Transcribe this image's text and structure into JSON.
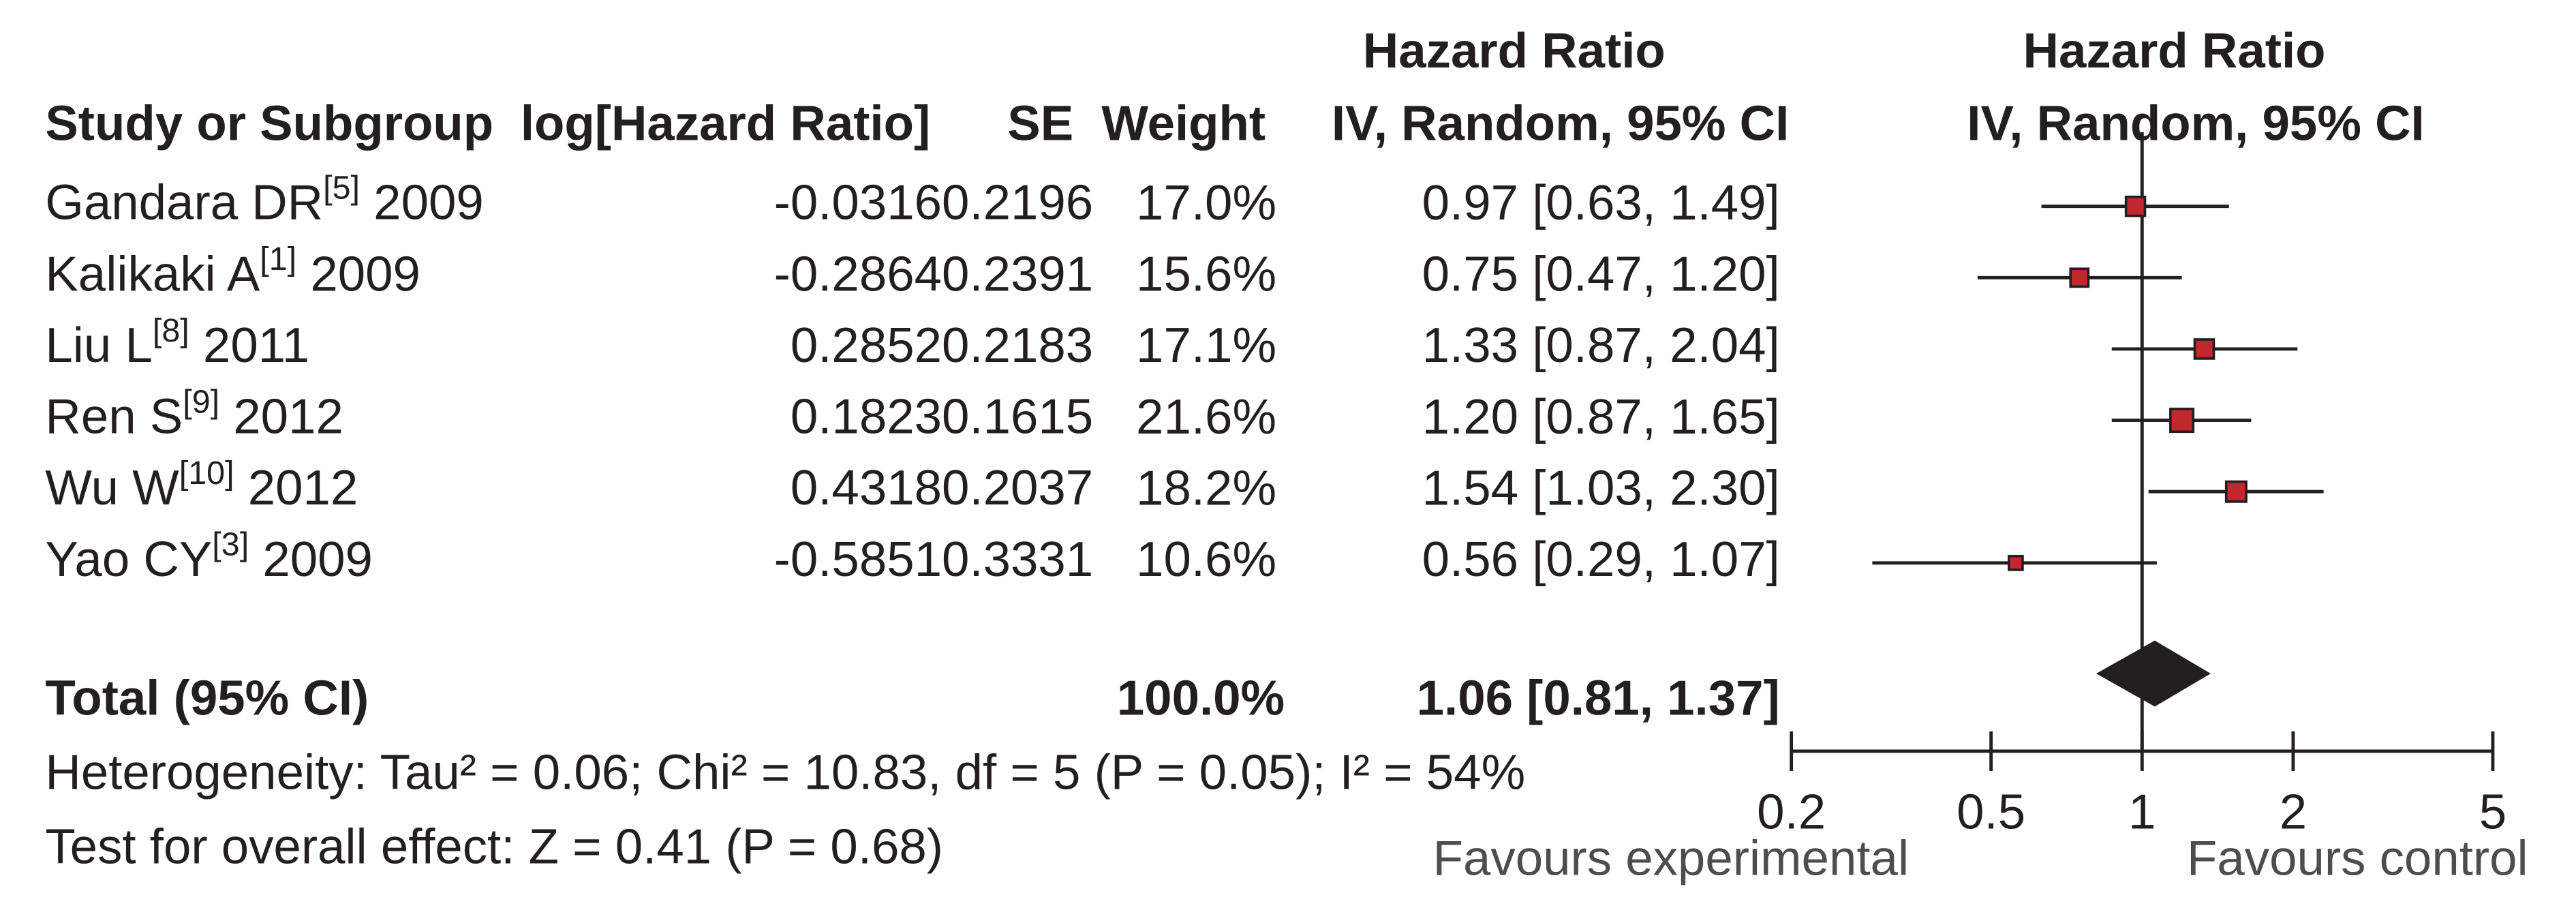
{
  "chart_data": {
    "type": "forest",
    "headers": {
      "study": "Study or Subgroup",
      "log_hr": "log[Hazard Ratio]",
      "se": "SE",
      "weight": "Weight",
      "effect_title": "Hazard Ratio",
      "effect_method": "IV, Random, 95% CI",
      "plot_title": "Hazard Ratio",
      "plot_method": "IV, Random, 95% CI"
    },
    "studies": [
      {
        "author": "Gandara DR",
        "ref": "[5]",
        "year": "2009"
      },
      {
        "author": "Kalikaki A",
        "ref": "[1]",
        "year": "2009"
      },
      {
        "author": "Liu L",
        "ref": "[8]",
        "year": "2011"
      },
      {
        "author": "Ren S",
        "ref": "[9]",
        "year": "2012"
      },
      {
        "author": "Wu W",
        "ref": "[10]",
        "year": "2012"
      },
      {
        "author": "Yao CY",
        "ref": "[3]",
        "year": "2009"
      }
    ],
    "log_hr": [
      -0.0316,
      -0.2864,
      0.2852,
      0.1823,
      0.4318,
      -0.5851
    ],
    "se": [
      0.2196,
      0.2391,
      0.2183,
      0.1615,
      0.2037,
      0.3331
    ],
    "weight": [
      17,
      15.6,
      17.1,
      21.6,
      18.2,
      10.6
    ],
    "weight_labels": [
      "17.0%",
      "15.6%",
      "17.1%",
      "21.6%",
      "18.2%",
      "10.6%"
    ],
    "hr": [
      0.97,
      0.75,
      1.33,
      1.2,
      1.54,
      0.56
    ],
    "ci_low": [
      0.63,
      0.47,
      0.87,
      0.87,
      1.03,
      0.29
    ],
    "ci_high": [
      1.49,
      1.2,
      2.04,
      1.65,
      2.3,
      1.07
    ],
    "value_labels": [
      "0.97 [0.63, 1.49]",
      "0.75 [0.47, 1.20]",
      "1.33 [0.87, 2.04]",
      "1.20 [0.87, 1.65]",
      "1.54 [1.03, 2.30]",
      "0.56 [0.29, 1.07]"
    ],
    "total": {
      "label": "Total (95% CI)",
      "weight": {
        "value": 100,
        "label": "100.0%"
      },
      "hr": 1.06,
      "ci_low": 0.81,
      "ci_high": 1.37,
      "value_label": "1.06 [0.81, 1.37]"
    },
    "heterogeneity": "Heterogeneity: Tau² = 0.06; Chi² = 10.83, df = 5 (P = 0.05); I² = 54%",
    "overall_effect": "Test for overall effect: Z = 0.41 (P = 0.68)",
    "xscale": "log",
    "xlim": [
      0.2,
      5
    ],
    "xticks": [
      0.2,
      0.5,
      1,
      2,
      5
    ],
    "favours_left": "Favours experimental",
    "favours_right": "Favours control",
    "color": "#c1272d"
  }
}
